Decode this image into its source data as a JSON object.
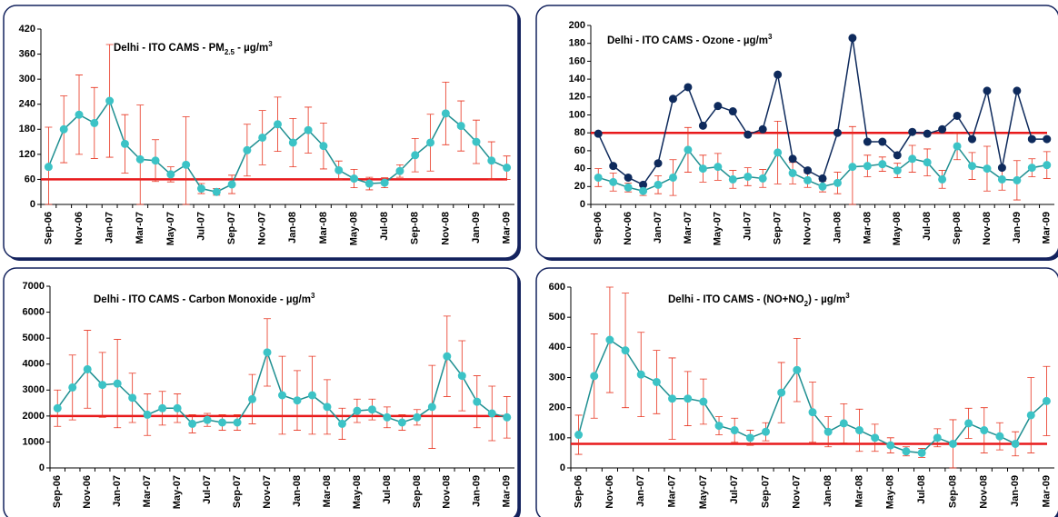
{
  "chart_data": [
    {
      "type": "line",
      "title": [
        {
          "text": "Delhi - ITO CAMS - PM"
        },
        {
          "text": "2.5",
          "script": "sub"
        },
        {
          "text": " - µg/m"
        },
        {
          "text": "3",
          "script": "super"
        }
      ],
      "categories": [
        "Sep-06",
        null,
        "Nov-06",
        null,
        "Jan-07",
        null,
        "Mar-07",
        null,
        "May-07",
        null,
        "Jul-07",
        null,
        "Sep-07",
        null,
        "Nov-07",
        null,
        "Jan-08",
        null,
        "Mar-08",
        null,
        "May-08",
        null,
        "Jul-08",
        null,
        "Sep-08",
        null,
        "Nov-08",
        null,
        "Jan-09",
        null,
        "Mar-09"
      ],
      "series": [
        {
          "color": "#3cc3c6",
          "values": [
            90,
            180,
            215,
            195,
            248,
            145,
            108,
            105,
            72,
            95,
            38,
            30,
            48,
            130,
            160,
            192,
            148,
            178,
            140,
            82,
            62,
            50,
            52,
            80,
            118,
            148,
            218,
            188,
            150,
            105,
            88
          ],
          "errors": [
            95,
            80,
            95,
            85,
            135,
            70,
            130,
            50,
            18,
            115,
            12,
            8,
            22,
            62,
            65,
            65,
            58,
            55,
            55,
            22,
            22,
            15,
            12,
            15,
            40,
            68,
            75,
            60,
            52,
            45,
            28
          ]
        }
      ],
      "reference_line": {
        "value": 60,
        "color": "#e8191b"
      },
      "ylim": [
        0,
        420
      ],
      "yticks": [
        0,
        60,
        120,
        180,
        240,
        300,
        360,
        420
      ]
    },
    {
      "type": "line",
      "title": [
        {
          "text": "Delhi - ITO CAMS - Ozone - µg/m"
        },
        {
          "text": "3",
          "script": "super"
        }
      ],
      "categories": [
        "Sep-06",
        null,
        "Nov-06",
        null,
        "Jan-07",
        null,
        "Mar-07",
        null,
        "May-07",
        null,
        "Jul-07",
        null,
        "Sep-07",
        null,
        "Nov-07",
        null,
        "Jan-08",
        null,
        "Mar-08",
        null,
        "May-08",
        null,
        "Jul-08",
        null,
        "Sep-08",
        null,
        "Nov-08",
        null,
        "Jan-09",
        null,
        "Mar-09"
      ],
      "series": [
        {
          "color": "#0e2a5c",
          "values": [
            79,
            43,
            30,
            22,
            46,
            118,
            131,
            88,
            110,
            104,
            78,
            84,
            145,
            51,
            38,
            29,
            80,
            186,
            70,
            70,
            55,
            81,
            79,
            84,
            99,
            73,
            127,
            41,
            127,
            73,
            73
          ]
        },
        {
          "color": "#3cc3c6",
          "values": [
            30,
            25,
            19,
            15,
            22,
            30,
            61,
            40,
            42,
            28,
            31,
            29,
            58,
            35,
            27,
            20,
            24,
            42,
            43,
            45,
            38,
            51,
            47,
            28,
            65,
            43,
            40,
            28,
            27,
            41,
            44
          ],
          "errors": [
            10,
            10,
            5,
            5,
            10,
            20,
            25,
            15,
            15,
            10,
            10,
            10,
            35,
            12,
            8,
            6,
            12,
            45,
            12,
            8,
            8,
            15,
            15,
            10,
            15,
            15,
            25,
            12,
            22,
            10,
            15
          ]
        }
      ],
      "reference_line": {
        "value": 80,
        "color": "#e8191b"
      },
      "ylim": [
        0,
        200
      ],
      "yticks": [
        0,
        20,
        40,
        60,
        80,
        100,
        120,
        140,
        160,
        180,
        200
      ]
    },
    {
      "type": "line",
      "title": [
        {
          "text": "Delhi - ITO CAMS - Carbon Monoxide - µg/m"
        },
        {
          "text": "3",
          "script": "super"
        }
      ],
      "categories": [
        "Sep-06",
        null,
        "Nov-06",
        null,
        "Jan-07",
        null,
        "Mar-07",
        null,
        "May-07",
        null,
        "Jul-07",
        null,
        "Sep-07",
        null,
        "Nov-07",
        null,
        "Jan-08",
        null,
        "Mar-08",
        null,
        "May-08",
        null,
        "Jul-08",
        null,
        "Sep-08",
        null,
        "Nov-08",
        null,
        "Jan-09",
        null,
        "Mar-09"
      ],
      "series": [
        {
          "color": "#3cc3c6",
          "values": [
            2300,
            3100,
            3800,
            3200,
            3250,
            2700,
            2050,
            2300,
            2300,
            1700,
            1850,
            1750,
            1750,
            2650,
            4450,
            2800,
            2600,
            2800,
            2350,
            1700,
            2200,
            2250,
            1950,
            1750,
            1950,
            2350,
            4300,
            3550,
            2550,
            2100,
            1950
          ],
          "errors": [
            700,
            1250,
            1500,
            1250,
            1700,
            950,
            800,
            650,
            550,
            350,
            250,
            300,
            300,
            950,
            1300,
            1500,
            1150,
            1500,
            1050,
            600,
            450,
            400,
            400,
            300,
            300,
            1600,
            1550,
            1350,
            1000,
            1050,
            800
          ]
        }
      ],
      "reference_line": {
        "value": 2000,
        "color": "#e8191b"
      },
      "ylim": [
        0,
        7000
      ],
      "yticks": [
        0,
        1000,
        2000,
        3000,
        4000,
        5000,
        6000,
        7000
      ]
    },
    {
      "type": "line",
      "title": [
        {
          "text": "Delhi - ITO CAMS - (NO+NO"
        },
        {
          "text": "2",
          "script": "sub"
        },
        {
          "text": ") - µg/m"
        },
        {
          "text": "3",
          "script": "super"
        }
      ],
      "categories": [
        "Sep-06",
        null,
        "Nov-06",
        null,
        "Jan-07",
        null,
        "Mar-07",
        null,
        "May-07",
        null,
        "Jul-07",
        null,
        "Sep-07",
        null,
        "Nov-07",
        null,
        "Jan-08",
        null,
        "Mar-08",
        null,
        "May-08",
        null,
        "Jul-08",
        null,
        "Sep-08",
        null,
        "Nov-08",
        null,
        "Jan-09",
        null,
        "Mar-09"
      ],
      "series": [
        {
          "color": "#3cc3c6",
          "values": [
            110,
            305,
            425,
            390,
            310,
            285,
            230,
            230,
            220,
            140,
            125,
            100,
            120,
            250,
            325,
            185,
            120,
            148,
            125,
            100,
            75,
            55,
            50,
            100,
            80,
            148,
            125,
            105,
            80,
            175,
            222
          ],
          "errors": [
            65,
            140,
            175,
            190,
            140,
            105,
            135,
            90,
            75,
            30,
            40,
            25,
            30,
            100,
            105,
            100,
            50,
            65,
            70,
            45,
            25,
            15,
            15,
            30,
            80,
            50,
            75,
            45,
            40,
            125,
            115
          ]
        }
      ],
      "reference_line": {
        "value": 80,
        "color": "#e8191b"
      },
      "ylim": [
        0,
        600
      ],
      "yticks": [
        0,
        100,
        200,
        300,
        400,
        500,
        600
      ]
    }
  ]
}
